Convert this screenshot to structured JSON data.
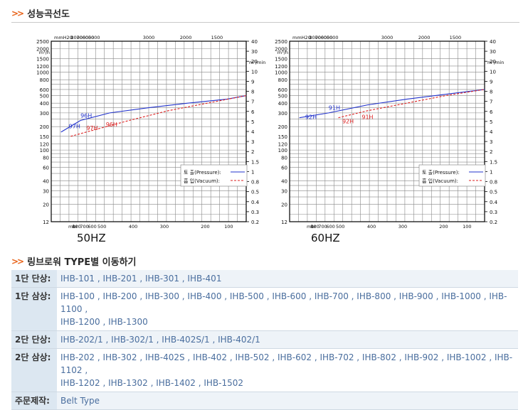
{
  "performance": {
    "heading": "성능곡선도"
  },
  "charts": [
    {
      "hz_label": "50HZ"
    },
    {
      "hz_label": "60HZ"
    }
  ],
  "chart_data": [
    {
      "type": "line",
      "title": "50HZ",
      "y_unit_left": "m³/h",
      "y_unit_right": "m³/min",
      "top_unit": "mmH2O",
      "bottom_unit": "mbr",
      "y_scale": "log",
      "ylim": [
        12,
        2500
      ],
      "left_ticks": [
        12,
        20,
        30,
        40,
        60,
        80,
        100,
        120,
        150,
        200,
        300,
        400,
        500,
        600,
        800,
        1000,
        1200,
        1500,
        2000,
        2500
      ],
      "right_ticks": [
        "0.2",
        "0.3",
        "0.4",
        "0.5",
        "0.8",
        "1",
        "1.5",
        "2",
        "3",
        "4",
        "5",
        "6",
        "7",
        "8",
        "9",
        "10",
        "20",
        "30",
        "40"
      ],
      "top_ticks": [
        "8000",
        "7000",
        "6000",
        "5000",
        "3000",
        "2000",
        "1500"
      ],
      "bottom_ticks": [
        "800",
        "700",
        "600",
        "500",
        "400",
        "300",
        "200",
        "100"
      ],
      "legend": {
        "position": "bottom-right",
        "entries": [
          "토 출(Pressure):",
          "흡 입(Vacuum):"
        ]
      },
      "series": [
        {
          "name": "토 출(Pressure):",
          "color": "#2233cc",
          "style": "solid",
          "x": [
            0.05,
            0.15,
            0.3,
            0.5,
            0.7,
            0.9,
            1.0
          ],
          "y": [
            170,
            240,
            300,
            350,
            400,
            450,
            500
          ]
        },
        {
          "name": "흡 입(Vacuum):",
          "color": "#dd2222",
          "style": "dashed",
          "x": [
            0.1,
            0.25,
            0.4,
            0.6,
            0.8,
            1.0
          ],
          "y": [
            150,
            190,
            240,
            320,
            400,
            500
          ]
        }
      ],
      "annotations": [
        {
          "text": "96H",
          "color": "#2233cc",
          "x": 0.15,
          "y": 260
        },
        {
          "text": "97H",
          "color": "#2233cc",
          "x": 0.09,
          "y": 190
        },
        {
          "text": "97H",
          "color": "#dd2222",
          "x": 0.18,
          "y": 180
        },
        {
          "text": "96H",
          "color": "#dd2222",
          "x": 0.28,
          "y": 200
        }
      ]
    },
    {
      "type": "line",
      "title": "60HZ",
      "y_unit_left": "m³/h",
      "y_unit_right": "m³/min",
      "top_unit": "mmH2O",
      "bottom_unit": "mbr",
      "y_scale": "log",
      "ylim": [
        12,
        2500
      ],
      "left_ticks": [
        12,
        20,
        30,
        40,
        60,
        80,
        100,
        120,
        150,
        200,
        300,
        400,
        500,
        600,
        800,
        1000,
        1200,
        1500,
        2000,
        2500
      ],
      "right_ticks": [
        "0.2",
        "0.3",
        "0.4",
        "0.5",
        "0.8",
        "1",
        "1.5",
        "2",
        "3",
        "4",
        "5",
        "6",
        "7",
        "8",
        "9",
        "10",
        "20",
        "30",
        "40"
      ],
      "top_ticks": [
        "8000",
        "7000",
        "6000",
        "5000",
        "3000",
        "2000",
        "1500"
      ],
      "bottom_ticks": [
        "800",
        "700",
        "600",
        "500",
        "400",
        "300",
        "200",
        "100"
      ],
      "legend": {
        "position": "bottom-right",
        "entries": [
          "토 출(Pressure):",
          "흡 입(Vacuum):"
        ]
      },
      "series": [
        {
          "name": "토 출(Pressure):",
          "color": "#2233cc",
          "style": "solid",
          "x": [
            0.05,
            0.2,
            0.4,
            0.6,
            0.8,
            1.0
          ],
          "y": [
            260,
            300,
            380,
            450,
            520,
            600
          ]
        },
        {
          "name": "흡 입(Vacuum):",
          "color": "#dd2222",
          "style": "dashed",
          "x": [
            0.25,
            0.4,
            0.6,
            0.8,
            1.0
          ],
          "y": [
            260,
            320,
            400,
            500,
            600
          ]
        }
      ],
      "annotations": [
        {
          "text": "92H",
          "color": "#2233cc",
          "x": 0.08,
          "y": 250
        },
        {
          "text": "91H",
          "color": "#2233cc",
          "x": 0.2,
          "y": 330
        },
        {
          "text": "92H",
          "color": "#dd2222",
          "x": 0.27,
          "y": 220
        },
        {
          "text": "91H",
          "color": "#dd2222",
          "x": 0.37,
          "y": 250
        }
      ]
    }
  ],
  "models_section": {
    "heading": "링브로워 TYPE별 이동하기",
    "rows": [
      {
        "label": "1단 단상:",
        "value": "IHB-101 , IHB-201 , IHB-301 , IHB-401"
      },
      {
        "label": "1단 삼상:",
        "value": "IHB-100 , IHB-200 , IHB-300 , IHB-400 , IHB-500 , IHB-600 , IHB-700 , IHB-800 , IHB-900 , IHB-1000 , IHB-1100 ,",
        "value2": "IHB-1200 , IHB-1300"
      },
      {
        "label": "2단 단상:",
        "value": "IHB-202/1 , IHB-302/1 , IHB-402S/1 , IHB-402/1"
      },
      {
        "label": "2단 삼상:",
        "value": "IHB-202 , IHB-302 , IHB-402S , IHB-402 , IHB-502 , IHB-602 , IHB-702 , IHB-802 , IHB-902 , IHB-1002 , IHB-1102 ,",
        "value2": "IHB-1202 , IHB-1302 , IHB-1402 , IHB-1502"
      },
      {
        "label": "주문제작:",
        "value": "Belt Type"
      }
    ]
  }
}
